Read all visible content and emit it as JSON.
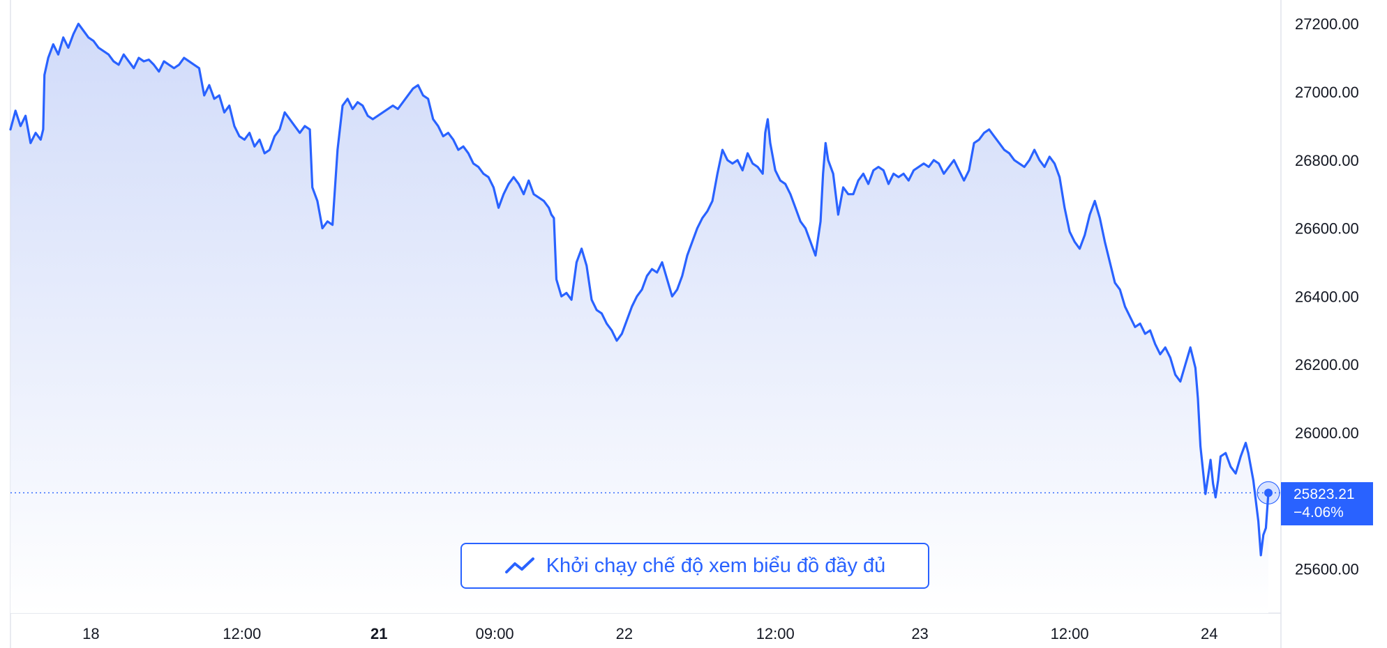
{
  "colors": {
    "line": "#2962ff",
    "area_top": "#c9d5f8",
    "area_bottom": "#ffffff",
    "grid_border": "#e0e3eb",
    "text": "#131722",
    "badge_bg": "#2962ff",
    "badge_text": "#ffffff"
  },
  "price_badge": {
    "price": "25823.21",
    "change": "−4.06%"
  },
  "full_chart_button": {
    "label": "Khởi chạy chế độ xem biểu đồ đầy đủ",
    "icon": "trend-line-icon"
  },
  "chart_data": {
    "type": "area",
    "title": "",
    "xlabel": "",
    "ylabel": "",
    "ylim": [
      25470,
      27270
    ],
    "y_ticks": [
      "27200.00",
      "27000.00",
      "26800.00",
      "26600.00",
      "26400.00",
      "26200.00",
      "26000.00",
      "25600.00"
    ],
    "y_tick_values": [
      27200,
      27000,
      26800,
      26600,
      26400,
      26200,
      26000,
      25600
    ],
    "x_ticks": [
      {
        "label": "18",
        "bold": false,
        "t": 0.064
      },
      {
        "label": "12:00",
        "bold": false,
        "t": 0.184
      },
      {
        "label": "21",
        "bold": true,
        "t": 0.293
      },
      {
        "label": "09:00",
        "bold": false,
        "t": 0.385
      },
      {
        "label": "22",
        "bold": false,
        "t": 0.488
      },
      {
        "label": "12:00",
        "bold": false,
        "t": 0.608
      },
      {
        "label": "23",
        "bold": false,
        "t": 0.723
      },
      {
        "label": "12:00",
        "bold": false,
        "t": 0.842
      },
      {
        "label": "24",
        "bold": false,
        "t": 0.953
      }
    ],
    "last_price": 25823.21,
    "series": [
      {
        "values": [
          [
            0.0,
            26890
          ],
          [
            0.004,
            26945
          ],
          [
            0.008,
            26900
          ],
          [
            0.012,
            26930
          ],
          [
            0.016,
            26850
          ],
          [
            0.02,
            26880
          ],
          [
            0.024,
            26860
          ],
          [
            0.026,
            26890
          ],
          [
            0.027,
            27050
          ],
          [
            0.03,
            27100
          ],
          [
            0.034,
            27140
          ],
          [
            0.038,
            27110
          ],
          [
            0.042,
            27160
          ],
          [
            0.046,
            27130
          ],
          [
            0.05,
            27170
          ],
          [
            0.054,
            27200
          ],
          [
            0.058,
            27180
          ],
          [
            0.062,
            27160
          ],
          [
            0.066,
            27150
          ],
          [
            0.07,
            27130
          ],
          [
            0.074,
            27120
          ],
          [
            0.078,
            27110
          ],
          [
            0.082,
            27090
          ],
          [
            0.086,
            27080
          ],
          [
            0.09,
            27110
          ],
          [
            0.094,
            27090
          ],
          [
            0.098,
            27070
          ],
          [
            0.102,
            27100
          ],
          [
            0.106,
            27090
          ],
          [
            0.11,
            27095
          ],
          [
            0.114,
            27080
          ],
          [
            0.118,
            27060
          ],
          [
            0.122,
            27090
          ],
          [
            0.126,
            27080
          ],
          [
            0.13,
            27070
          ],
          [
            0.134,
            27080
          ],
          [
            0.138,
            27100
          ],
          [
            0.142,
            27090
          ],
          [
            0.146,
            27080
          ],
          [
            0.15,
            27070
          ],
          [
            0.154,
            26990
          ],
          [
            0.158,
            27020
          ],
          [
            0.162,
            26980
          ],
          [
            0.166,
            26990
          ],
          [
            0.17,
            26940
          ],
          [
            0.174,
            26960
          ],
          [
            0.178,
            26900
          ],
          [
            0.182,
            26870
          ],
          [
            0.186,
            26860
          ],
          [
            0.19,
            26880
          ],
          [
            0.194,
            26840
          ],
          [
            0.198,
            26860
          ],
          [
            0.202,
            26820
          ],
          [
            0.206,
            26830
          ],
          [
            0.21,
            26870
          ],
          [
            0.214,
            26890
          ],
          [
            0.218,
            26940
          ],
          [
            0.222,
            26920
          ],
          [
            0.226,
            26900
          ],
          [
            0.23,
            26880
          ],
          [
            0.234,
            26900
          ],
          [
            0.238,
            26890
          ],
          [
            0.24,
            26720
          ],
          [
            0.244,
            26680
          ],
          [
            0.248,
            26600
          ],
          [
            0.252,
            26620
          ],
          [
            0.256,
            26610
          ],
          [
            0.26,
            26830
          ],
          [
            0.264,
            26960
          ],
          [
            0.268,
            26980
          ],
          [
            0.272,
            26950
          ],
          [
            0.276,
            26970
          ],
          [
            0.28,
            26960
          ],
          [
            0.284,
            26930
          ],
          [
            0.288,
            26920
          ],
          [
            0.292,
            26930
          ],
          [
            0.296,
            26940
          ],
          [
            0.3,
            26950
          ],
          [
            0.304,
            26960
          ],
          [
            0.308,
            26950
          ],
          [
            0.312,
            26970
          ],
          [
            0.316,
            26990
          ],
          [
            0.32,
            27010
          ],
          [
            0.324,
            27020
          ],
          [
            0.328,
            26990
          ],
          [
            0.332,
            26980
          ],
          [
            0.336,
            26920
          ],
          [
            0.34,
            26900
          ],
          [
            0.344,
            26870
          ],
          [
            0.348,
            26880
          ],
          [
            0.352,
            26860
          ],
          [
            0.356,
            26830
          ],
          [
            0.36,
            26840
          ],
          [
            0.364,
            26820
          ],
          [
            0.368,
            26790
          ],
          [
            0.372,
            26780
          ],
          [
            0.376,
            26760
          ],
          [
            0.38,
            26750
          ],
          [
            0.384,
            26720
          ],
          [
            0.388,
            26660
          ],
          [
            0.392,
            26700
          ],
          [
            0.396,
            26730
          ],
          [
            0.4,
            26750
          ],
          [
            0.404,
            26730
          ],
          [
            0.408,
            26700
          ],
          [
            0.412,
            26740
          ],
          [
            0.416,
            26700
          ],
          [
            0.42,
            26690
          ],
          [
            0.424,
            26680
          ],
          [
            0.428,
            26660
          ],
          [
            0.43,
            26640
          ],
          [
            0.432,
            26630
          ],
          [
            0.434,
            26450
          ],
          [
            0.438,
            26400
          ],
          [
            0.442,
            26410
          ],
          [
            0.446,
            26390
          ],
          [
            0.45,
            26500
          ],
          [
            0.454,
            26540
          ],
          [
            0.458,
            26490
          ],
          [
            0.462,
            26390
          ],
          [
            0.466,
            26360
          ],
          [
            0.47,
            26350
          ],
          [
            0.474,
            26320
          ],
          [
            0.478,
            26300
          ],
          [
            0.482,
            26270
          ],
          [
            0.486,
            26290
          ],
          [
            0.49,
            26330
          ],
          [
            0.494,
            26370
          ],
          [
            0.498,
            26400
          ],
          [
            0.502,
            26420
          ],
          [
            0.506,
            26460
          ],
          [
            0.51,
            26480
          ],
          [
            0.514,
            26470
          ],
          [
            0.518,
            26500
          ],
          [
            0.522,
            26450
          ],
          [
            0.526,
            26400
          ],
          [
            0.53,
            26420
          ],
          [
            0.534,
            26460
          ],
          [
            0.538,
            26520
          ],
          [
            0.542,
            26560
          ],
          [
            0.546,
            26600
          ],
          [
            0.55,
            26630
          ],
          [
            0.554,
            26650
          ],
          [
            0.558,
            26680
          ],
          [
            0.562,
            26760
          ],
          [
            0.566,
            26830
          ],
          [
            0.57,
            26800
          ],
          [
            0.574,
            26790
          ],
          [
            0.578,
            26800
          ],
          [
            0.582,
            26770
          ],
          [
            0.586,
            26820
          ],
          [
            0.59,
            26790
          ],
          [
            0.594,
            26780
          ],
          [
            0.598,
            26760
          ],
          [
            0.6,
            26880
          ],
          [
            0.602,
            26920
          ],
          [
            0.604,
            26850
          ],
          [
            0.608,
            26770
          ],
          [
            0.612,
            26740
          ],
          [
            0.616,
            26730
          ],
          [
            0.62,
            26700
          ],
          [
            0.624,
            26660
          ],
          [
            0.628,
            26620
          ],
          [
            0.632,
            26600
          ],
          [
            0.636,
            26560
          ],
          [
            0.64,
            26520
          ],
          [
            0.644,
            26620
          ],
          [
            0.646,
            26760
          ],
          [
            0.648,
            26850
          ],
          [
            0.65,
            26800
          ],
          [
            0.654,
            26760
          ],
          [
            0.658,
            26640
          ],
          [
            0.662,
            26720
          ],
          [
            0.666,
            26700
          ],
          [
            0.67,
            26700
          ],
          [
            0.674,
            26740
          ],
          [
            0.678,
            26760
          ],
          [
            0.682,
            26730
          ],
          [
            0.686,
            26770
          ],
          [
            0.69,
            26780
          ],
          [
            0.694,
            26770
          ],
          [
            0.698,
            26730
          ],
          [
            0.702,
            26760
          ],
          [
            0.706,
            26750
          ],
          [
            0.71,
            26760
          ],
          [
            0.714,
            26740
          ],
          [
            0.718,
            26770
          ],
          [
            0.722,
            26780
          ],
          [
            0.726,
            26790
          ],
          [
            0.73,
            26780
          ],
          [
            0.734,
            26800
          ],
          [
            0.738,
            26790
          ],
          [
            0.742,
            26760
          ],
          [
            0.746,
            26780
          ],
          [
            0.75,
            26800
          ],
          [
            0.754,
            26770
          ],
          [
            0.758,
            26740
          ],
          [
            0.762,
            26770
          ],
          [
            0.766,
            26850
          ],
          [
            0.77,
            26860
          ],
          [
            0.774,
            26880
          ],
          [
            0.778,
            26890
          ],
          [
            0.782,
            26870
          ],
          [
            0.786,
            26850
          ],
          [
            0.79,
            26830
          ],
          [
            0.794,
            26820
          ],
          [
            0.798,
            26800
          ],
          [
            0.802,
            26790
          ],
          [
            0.806,
            26780
          ],
          [
            0.81,
            26800
          ],
          [
            0.814,
            26830
          ],
          [
            0.818,
            26800
          ],
          [
            0.822,
            26780
          ],
          [
            0.826,
            26810
          ],
          [
            0.83,
            26790
          ],
          [
            0.834,
            26750
          ],
          [
            0.838,
            26660
          ],
          [
            0.842,
            26590
          ],
          [
            0.846,
            26560
          ],
          [
            0.85,
            26540
          ],
          [
            0.854,
            26580
          ],
          [
            0.858,
            26640
          ],
          [
            0.862,
            26680
          ],
          [
            0.866,
            26630
          ],
          [
            0.87,
            26560
          ],
          [
            0.874,
            26500
          ],
          [
            0.878,
            26440
          ],
          [
            0.882,
            26420
          ],
          [
            0.886,
            26370
          ],
          [
            0.89,
            26340
          ],
          [
            0.894,
            26310
          ],
          [
            0.898,
            26320
          ],
          [
            0.902,
            26290
          ],
          [
            0.906,
            26300
          ],
          [
            0.91,
            26260
          ],
          [
            0.914,
            26230
          ],
          [
            0.918,
            26250
          ],
          [
            0.922,
            26220
          ],
          [
            0.926,
            26170
          ],
          [
            0.93,
            26150
          ],
          [
            0.934,
            26200
          ],
          [
            0.938,
            26250
          ],
          [
            0.942,
            26190
          ],
          [
            0.944,
            26100
          ],
          [
            0.946,
            25960
          ],
          [
            0.948,
            25890
          ],
          [
            0.95,
            25820
          ],
          [
            0.952,
            25870
          ],
          [
            0.954,
            25920
          ],
          [
            0.956,
            25850
          ],
          [
            0.958,
            25810
          ],
          [
            0.96,
            25860
          ],
          [
            0.962,
            25930
          ],
          [
            0.966,
            25940
          ],
          [
            0.97,
            25900
          ],
          [
            0.974,
            25880
          ],
          [
            0.978,
            25930
          ],
          [
            0.982,
            25970
          ],
          [
            0.984,
            25940
          ],
          [
            0.986,
            25900
          ],
          [
            0.988,
            25860
          ],
          [
            0.99,
            25800
          ],
          [
            0.992,
            25740
          ],
          [
            0.994,
            25640
          ],
          [
            0.996,
            25700
          ],
          [
            0.998,
            25720
          ],
          [
            1.0,
            25823
          ]
        ]
      }
    ]
  }
}
